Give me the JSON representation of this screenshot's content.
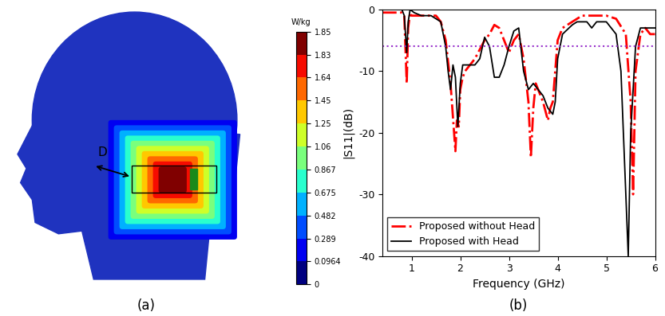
{
  "chart_data": [
    {
      "type": "image",
      "caption": "(a)",
      "annotations": [
        "D"
      ],
      "colorbar": {
        "label": "W/kg",
        "ticks": [
          0,
          0.0964,
          0.289,
          0.482,
          0.675,
          0.867,
          1.06,
          1.25,
          1.45,
          1.64,
          1.83,
          1.85
        ]
      }
    },
    {
      "type": "line",
      "caption": "(b)",
      "x_label": "Frequency (GHz)",
      "y_label": "|S11|(dB)",
      "xlim": [
        0.4,
        6
      ],
      "ylim": [
        -40,
        0
      ],
      "xticks": [
        1,
        2,
        3,
        4,
        5,
        6
      ],
      "yticks": [
        -40,
        -30,
        -20,
        -10,
        0
      ],
      "legend": "lower left",
      "threshold": -6,
      "series": [
        {
          "name": "Proposed without Head",
          "color": "#ff0000",
          "line_style": "dashdot",
          "x": [
            0.4,
            0.8,
            0.85,
            0.9,
            0.93,
            0.97,
            1.0,
            1.5,
            1.6,
            1.7,
            1.8,
            1.9,
            1.93,
            1.97,
            2.0,
            2.05,
            2.1,
            2.3,
            2.5,
            2.6,
            2.7,
            2.8,
            3.0,
            3.1,
            3.2,
            3.3,
            3.4,
            3.45,
            3.5,
            3.55,
            3.6,
            3.65,
            3.7,
            3.8,
            3.85,
            3.9,
            4.0,
            4.1,
            4.3,
            4.5,
            4.8,
            5.0,
            5.2,
            5.4,
            5.5,
            5.55,
            5.6,
            5.7,
            5.8,
            5.9,
            6.0
          ],
          "values": [
            -0.5,
            -0.5,
            -1,
            -12,
            -3,
            -0.5,
            -1,
            -1,
            -2,
            -5,
            -12,
            -23,
            -18,
            -19,
            -13,
            -11,
            -10,
            -8,
            -5,
            -4,
            -2.5,
            -3,
            -7,
            -5,
            -4,
            -8,
            -15,
            -24,
            -16,
            -12,
            -13,
            -14,
            -15,
            -18,
            -16,
            -15,
            -5,
            -3,
            -2,
            -1,
            -1,
            -1,
            -1.5,
            -4,
            -15,
            -30,
            -10,
            -4,
            -3,
            -4,
            -4
          ]
        },
        {
          "name": "Proposed with Head",
          "color": "#000000",
          "line_style": "solid",
          "x": [
            0.4,
            0.8,
            0.85,
            0.9,
            0.93,
            0.97,
            1.05,
            1.2,
            1.4,
            1.6,
            1.7,
            1.75,
            1.8,
            1.85,
            1.9,
            1.95,
            2.0,
            2.05,
            2.3,
            2.4,
            2.5,
            2.6,
            2.7,
            2.8,
            2.9,
            3.0,
            3.1,
            3.2,
            3.3,
            3.4,
            3.5,
            3.6,
            3.7,
            3.8,
            3.9,
            3.95,
            4.0,
            4.1,
            4.3,
            4.4,
            4.6,
            4.7,
            4.8,
            5.0,
            5.2,
            5.3,
            5.4,
            5.45,
            5.5,
            5.6,
            5.7,
            5.8,
            6.0
          ],
          "values": [
            0,
            0,
            -1,
            -7,
            -2,
            0,
            -0.5,
            -1,
            -1,
            -2,
            -6,
            -10,
            -13,
            -9,
            -11,
            -19,
            -12,
            -9,
            -9,
            -8,
            -4.5,
            -6,
            -11,
            -11,
            -9,
            -6,
            -3.5,
            -3,
            -10,
            -13,
            -12,
            -13,
            -14,
            -16,
            -17,
            -15,
            -8,
            -4,
            -2.5,
            -2,
            -2,
            -3,
            -2,
            -2,
            -4,
            -10,
            -30,
            -40,
            -20,
            -6,
            -3,
            -3,
            -3
          ]
        }
      ]
    }
  ]
}
